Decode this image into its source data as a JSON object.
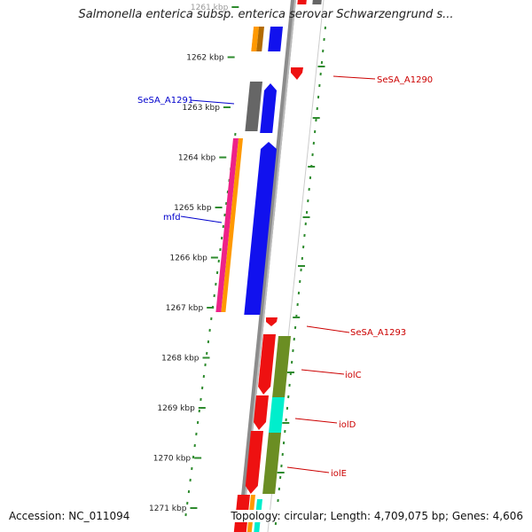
{
  "title": "Salmonella enterica subsp. enterica serovar Schwarzengrund s...",
  "accession": "Accession: NC_011094",
  "topology": "Topology: circular; Length: 4,709,075 bp; Genes: 4,606",
  "ticks": [
    {
      "label": "1261 kbp",
      "style": "faded"
    },
    {
      "label": "1262 kbp"
    },
    {
      "label": "1263 kbp"
    },
    {
      "label": "1264 kbp"
    },
    {
      "label": "1265 kbp"
    },
    {
      "label": "1266 kbp"
    },
    {
      "label": "1267 kbp"
    },
    {
      "label": "1268 kbp"
    },
    {
      "label": "1269 kbp"
    },
    {
      "label": "1270 kbp"
    },
    {
      "label": "1271 kbp"
    }
  ],
  "gene_labels": [
    {
      "name": "SeSA_A1290",
      "strand": "forward",
      "color": "#cc0000"
    },
    {
      "name": "SeSA_A1291",
      "strand": "reverse",
      "color": "#0000cc"
    },
    {
      "name": "mfd",
      "strand": "reverse",
      "color": "#0000cc"
    },
    {
      "name": "SeSA_A1293",
      "strand": "forward",
      "color": "#cc0000"
    },
    {
      "name": "iolC",
      "strand": "forward",
      "color": "#cc0000"
    },
    {
      "name": "iolD",
      "strand": "forward",
      "color": "#cc0000"
    },
    {
      "name": "iolE",
      "strand": "forward",
      "color": "#cc0000"
    }
  ],
  "colors": {
    "backbone": "#8c8c8c",
    "gc_dots": "#2e8b2e",
    "forward_gene": "#ee1111",
    "reverse_gene": "#1111ee",
    "cog_orange": "#ff9900",
    "cog_pink": "#ee2288",
    "cog_gray": "#666666",
    "cog_olive": "#6b8e23",
    "cog_cyan": "#00eecc",
    "label_forward": "#cc0000",
    "label_reverse": "#0000cc"
  }
}
